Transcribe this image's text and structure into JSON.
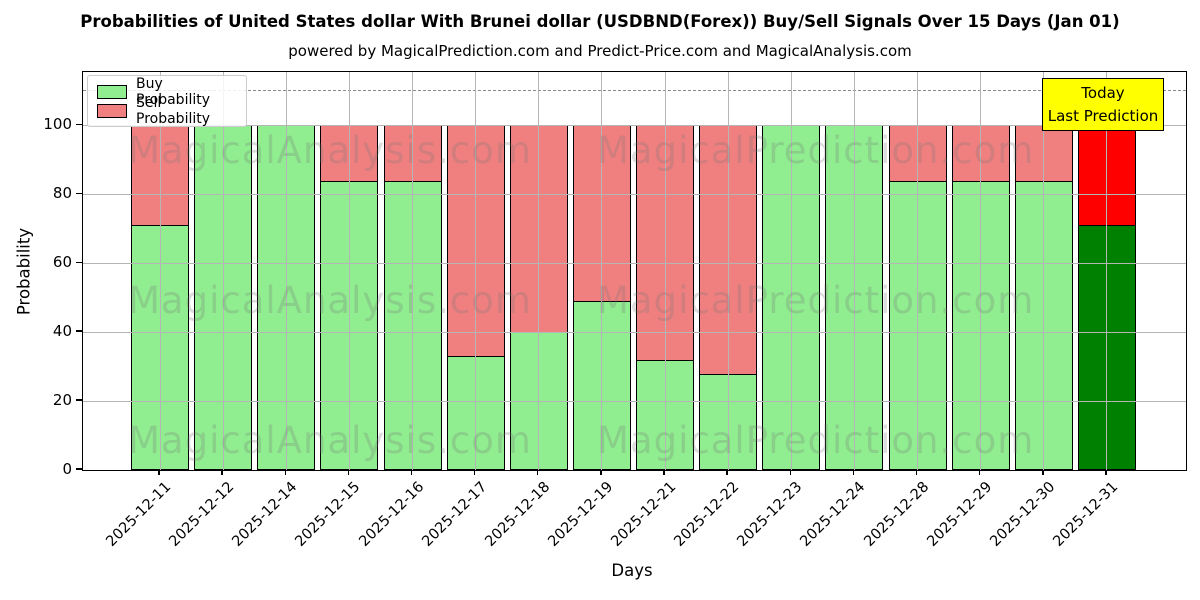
{
  "figure": {
    "title": "Probabilities of United States dollar With Brunei dollar (USDBND(Forex)) Buy/Sell Signals Over 15 Days (Jan 01)",
    "subtitle": "powered by MagicalPrediction.com and Predict-Price.com and MagicalAnalysis.com"
  },
  "chart_data": {
    "type": "bar",
    "stacked": true,
    "title": "Probabilities of United States dollar With Brunei dollar (USDBND(Forex)) Buy/Sell Signals Over 15 Days (Jan 01)",
    "xlabel": "Days",
    "ylabel": "Probability",
    "ylim": [
      0,
      115.5
    ],
    "yticks": [
      0,
      20,
      40,
      60,
      80,
      100
    ],
    "dashed_line_y": 110,
    "grid": true,
    "legend_position": "upper left",
    "categories": [
      "2025-12-11",
      "2025-12-12",
      "2025-12-14",
      "2025-12-15",
      "2025-12-16",
      "2025-12-17",
      "2025-12-18",
      "2025-12-19",
      "2025-12-21",
      "2025-12-22",
      "2025-12-23",
      "2025-12-24",
      "2025-12-28",
      "2025-12-29",
      "2025-12-30",
      "2025-12-31"
    ],
    "series": [
      {
        "name": "Buy Probability",
        "color": "#90EE90",
        "values": [
          71,
          100,
          100,
          84,
          84,
          33,
          40,
          49,
          32,
          28,
          100,
          100,
          84,
          84,
          84,
          71
        ]
      },
      {
        "name": "Sell Probability",
        "color": "#F08080",
        "values": [
          29,
          0,
          0,
          16,
          16,
          67,
          60,
          51,
          68,
          72,
          0,
          0,
          16,
          16,
          16,
          29
        ]
      }
    ],
    "today_index": 15,
    "today_colors": {
      "buy": "#008000",
      "sell": "#FF0000"
    },
    "annotation": {
      "lines": [
        "Today",
        "Last Prediction"
      ],
      "bg": "#FFFF00"
    }
  },
  "watermark": {
    "left_text": "MagicalAnalysis.com",
    "right_text": "MagicalPrediction.com"
  }
}
